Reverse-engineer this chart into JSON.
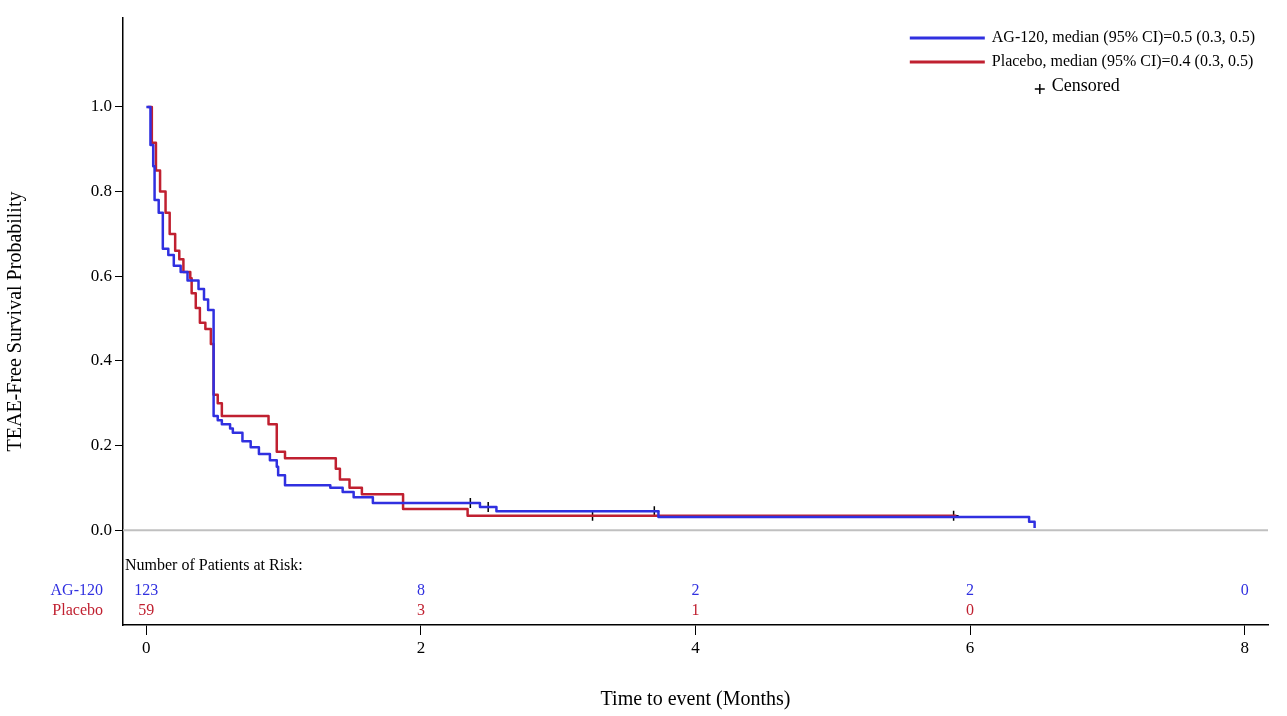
{
  "chart_data": {
    "type": "step",
    "xlabel": "Time to event (Months)",
    "ylabel": "TEAE-Free Survival Probability",
    "xlim": [
      -0.17,
      8.17
    ],
    "ylim": [
      -0.224,
      1.21
    ],
    "xticks": [
      0,
      2,
      4,
      6,
      8
    ],
    "yticks": [
      {
        "value": 0,
        "label": "0.0"
      },
      {
        "value": 0.2,
        "label": "0.2"
      },
      {
        "value": 0.4,
        "label": "0.4"
      },
      {
        "value": 0.6,
        "label": "0.6"
      },
      {
        "value": 0.8,
        "label": "0.8"
      },
      {
        "value": 1,
        "label": "1.0"
      }
    ],
    "grid": false,
    "legend": "top right",
    "line_style": "solid",
    "ref_lines": [
      {
        "axis": "y",
        "value": 0,
        "color": "#c0c0c0"
      }
    ],
    "series": [
      {
        "name": "AG-120, median (95% CI)=0.5 (0.3, 0.5)",
        "color": "#3030e0",
        "x": [
          0,
          0.03,
          0.05,
          0.06,
          0.09,
          0.12,
          0.16,
          0.2,
          0.25,
          0.3,
          0.38,
          0.42,
          0.45,
          0.49,
          0.49,
          0.52,
          0.55,
          0.61,
          0.63,
          0.7,
          0.76,
          0.82,
          0.9,
          0.95,
          0.96,
          1.01,
          1.34,
          1.43,
          1.51,
          1.65,
          2.43,
          2.55,
          3.73,
          6.43,
          6.47
        ],
        "values": [
          1,
          0.91,
          0.86,
          0.78,
          0.75,
          0.665,
          0.65,
          0.625,
          0.61,
          0.59,
          0.57,
          0.545,
          0.52,
          0.48,
          0.27,
          0.26,
          0.25,
          0.24,
          0.23,
          0.21,
          0.196,
          0.18,
          0.165,
          0.15,
          0.13,
          0.106,
          0.1,
          0.09,
          0.078,
          0.064,
          0.055,
          0.045,
          0.031,
          0.02,
          0.005
        ]
      },
      {
        "name": "Placebo, median (95% CI)=0.4 (0.3, 0.5)",
        "color": "#c02030",
        "x": [
          0.01,
          0.04,
          0.07,
          0.1,
          0.14,
          0.17,
          0.21,
          0.24,
          0.27,
          0.32,
          0.33,
          0.36,
          0.39,
          0.43,
          0.47,
          0.49,
          0.52,
          0.55,
          0.89,
          0.95,
          1.01,
          1.38,
          1.41,
          1.48,
          1.57,
          1.87,
          2.34,
          5.9
        ],
        "values": [
          1,
          0.915,
          0.85,
          0.8,
          0.75,
          0.7,
          0.66,
          0.64,
          0.61,
          0.595,
          0.56,
          0.525,
          0.49,
          0.475,
          0.44,
          0.32,
          0.3,
          0.27,
          0.25,
          0.185,
          0.17,
          0.145,
          0.12,
          0.1,
          0.085,
          0.05,
          0.034,
          0.034
        ]
      },
      {
        "name": "Censored",
        "color": "#000000",
        "type": "scatter",
        "marker": "cross",
        "x": [
          2.36,
          2.49,
          3.7,
          3.25,
          5.88
        ],
        "values": [
          0.064,
          0.055,
          0.045,
          0.034,
          0.034
        ]
      }
    ],
    "annotations": [
      "Number of Patients at Risk:",
      "AG-120",
      "123",
      "8",
      "2",
      "2",
      "0",
      "Placebo",
      "59",
      "3",
      "1",
      "0"
    ]
  }
}
